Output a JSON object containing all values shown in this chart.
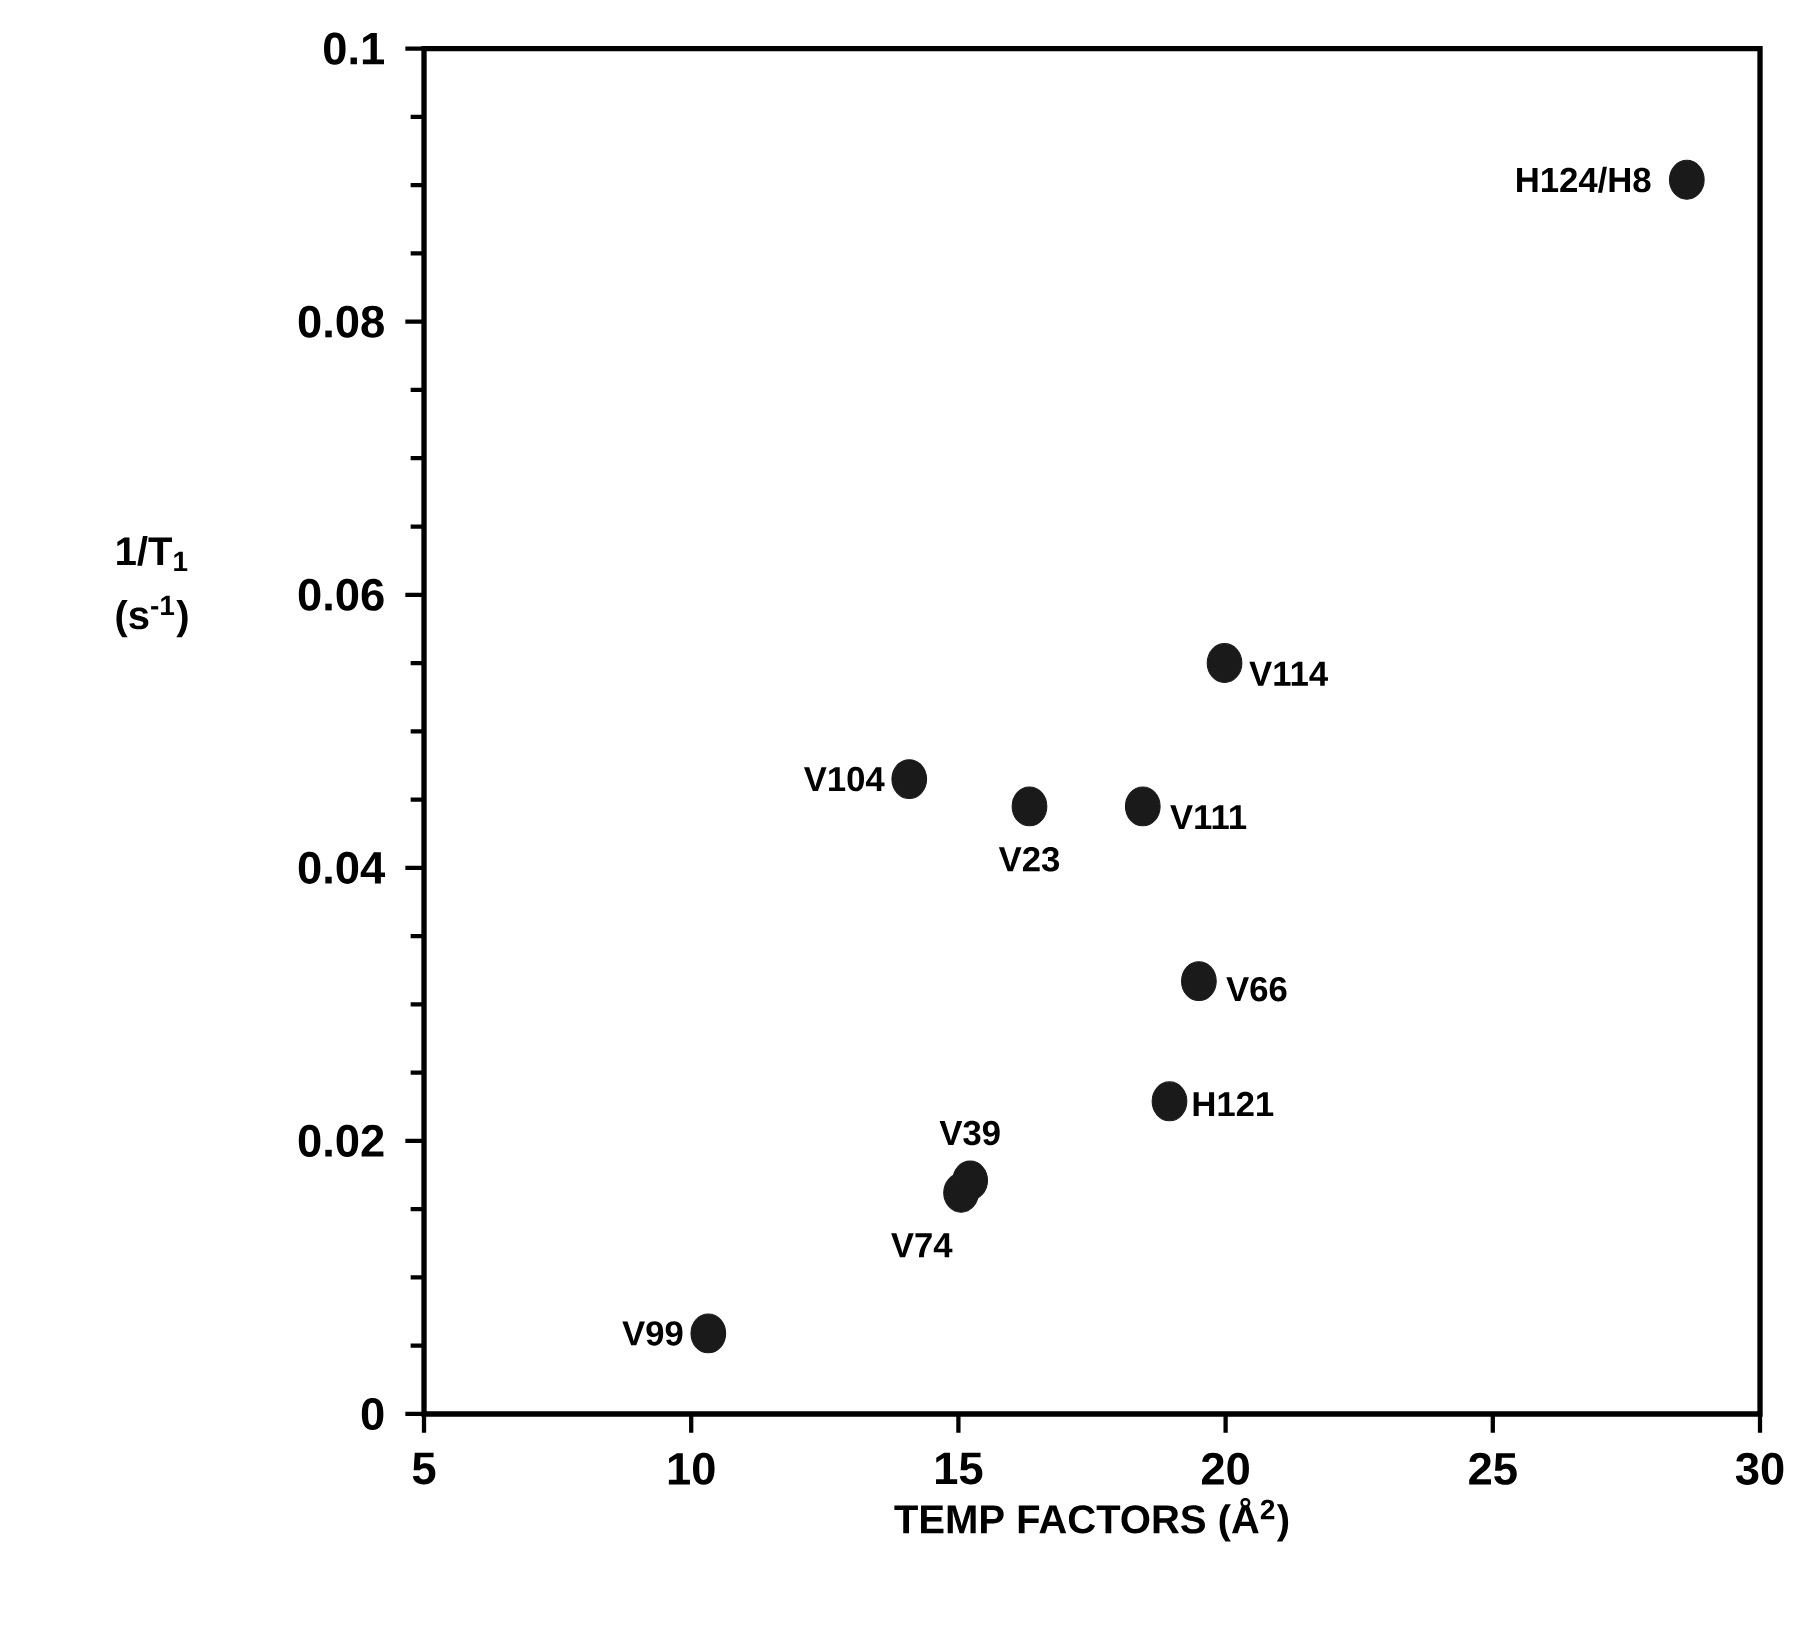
{
  "chart_data": {
    "type": "scatter",
    "xlabel": "TEMP FACTORS (Å$^{2}$)",
    "ylabel": "1/T$_{1}$ (s$^{-1}$)",
    "series": [
      {
        "color": "#1a1a1a",
        "x": [
          28.63,
          19.98,
          14.08,
          16.33,
          18.45,
          19.5,
          18.95,
          15.22,
          15.05,
          10.32
        ],
        "values": [
          0.0904,
          0.055,
          0.0465,
          0.0445,
          0.0445,
          0.0317,
          0.0229,
          0.0171,
          0.0162,
          0.0059
        ]
      }
    ],
    "marker": "circle",
    "xlim": [
      5,
      30
    ],
    "ylim": [
      0,
      0.1
    ],
    "xticks": [
      5,
      10,
      15,
      20,
      25,
      30
    ],
    "yticks": [
      0,
      0.02,
      0.04,
      0.06,
      0.08,
      0.1
    ],
    "annotations": [
      {
        "text": "H124/H8",
        "x": 28.63,
        "y": 0.0904
      },
      {
        "text": "V114",
        "x": 19.98,
        "y": 0.055
      },
      {
        "text": "V104",
        "x": 14.08,
        "y": 0.0465
      },
      {
        "text": "V23",
        "x": 16.33,
        "y": 0.0445
      },
      {
        "text": "V111",
        "x": 18.45,
        "y": 0.0445
      },
      {
        "text": "V66",
        "x": 19.5,
        "y": 0.0317
      },
      {
        "text": "H121",
        "x": 18.95,
        "y": 0.0229
      },
      {
        "text": "V39",
        "x": 15.22,
        "y": 0.0171
      },
      {
        "text": "V74",
        "x": 15.05,
        "y": 0.0162
      },
      {
        "text": "V99",
        "x": 10.32,
        "y": 0.0059
      }
    ]
  }
}
